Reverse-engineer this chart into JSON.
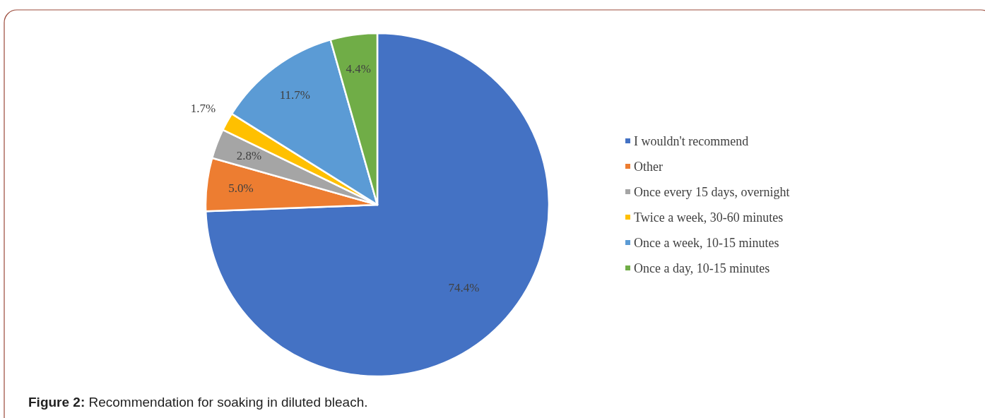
{
  "chart_data": {
    "type": "pie",
    "categories": [
      "I wouldn't recommend",
      "Other",
      "Once every 15 days, overnight",
      "Twice a week, 30-60 minutes",
      "Once a week, 10-15 minutes",
      "Once a day, 10-15 minutes"
    ],
    "values": [
      74.4,
      5.0,
      2.8,
      1.7,
      11.7,
      4.4
    ],
    "value_labels": [
      "74.4%",
      "5.0%",
      "2.8%",
      "1.7%",
      "11.7%",
      "4.4%"
    ],
    "colors": [
      "#4472c4",
      "#ed7d31",
      "#a5a5a5",
      "#ffc000",
      "#5b9bd5",
      "#70ad47"
    ],
    "legend": "right",
    "annotations": [
      "Figure 2: Recommendation for soaking in diluted bleach."
    ]
  }
}
